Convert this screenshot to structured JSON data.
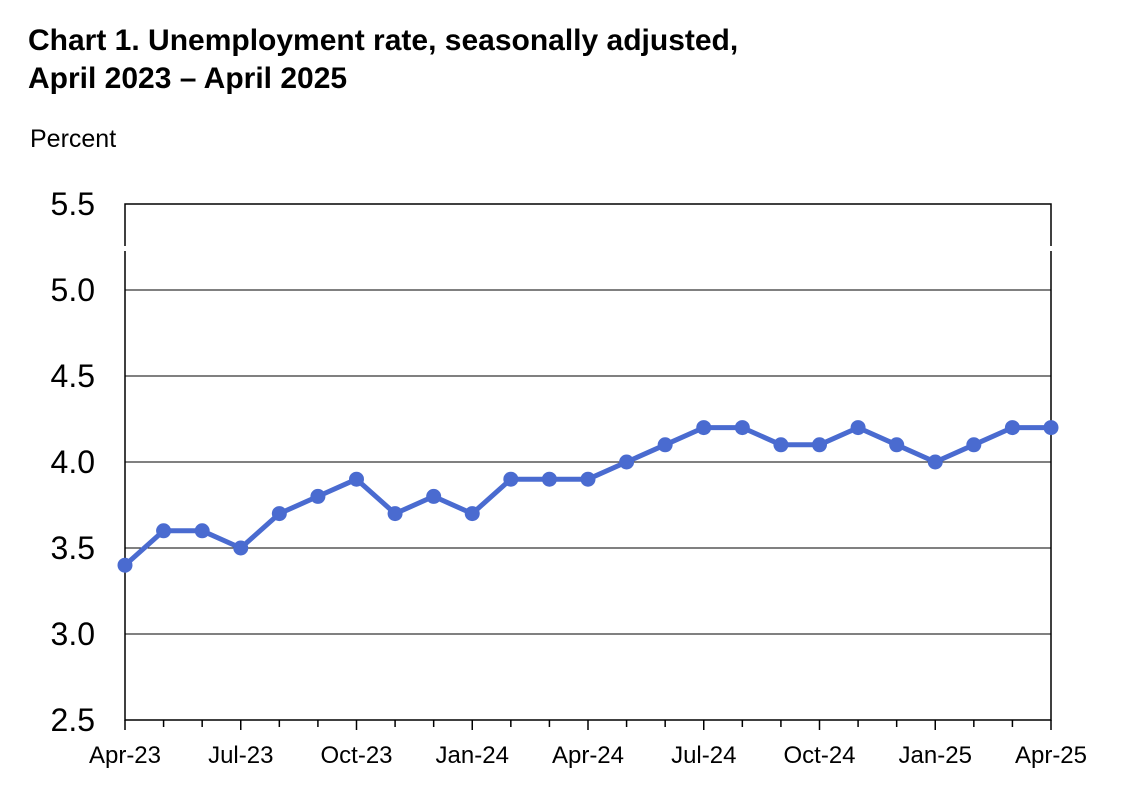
{
  "chart_data": {
    "type": "line",
    "title_line1": "Chart 1. Unemployment rate, seasonally adjusted,",
    "title_line2": "April 2023 – April 2025",
    "ylabel": "Percent",
    "xlabel": "",
    "ylim": [
      2.5,
      5.5
    ],
    "yticks": [
      "2.5",
      "3.0",
      "3.5",
      "4.0",
      "4.5",
      "5.0",
      "5.5"
    ],
    "ytick_values": [
      2.5,
      3.0,
      3.5,
      4.0,
      4.5,
      5.0,
      5.5
    ],
    "x": [
      "Apr-23",
      "May-23",
      "Jun-23",
      "Jul-23",
      "Aug-23",
      "Sep-23",
      "Oct-23",
      "Nov-23",
      "Dec-23",
      "Jan-24",
      "Feb-24",
      "Mar-24",
      "Apr-24",
      "May-24",
      "Jun-24",
      "Jul-24",
      "Aug-24",
      "Sep-24",
      "Oct-24",
      "Nov-24",
      "Dec-24",
      "Jan-25",
      "Feb-25",
      "Mar-25",
      "Apr-25"
    ],
    "xtick_labels": [
      "Apr-23",
      "Jul-23",
      "Oct-23",
      "Jan-24",
      "Apr-24",
      "Jul-24",
      "Oct-24",
      "Jan-25",
      "Apr-25"
    ],
    "series": [
      {
        "values": [
          3.4,
          3.6,
          3.6,
          3.5,
          3.7,
          3.8,
          3.9,
          3.7,
          3.8,
          3.7,
          3.9,
          3.9,
          3.9,
          4.0,
          4.1,
          4.2,
          4.2,
          4.1,
          4.1,
          4.2,
          4.1,
          4.0,
          4.1,
          4.2,
          4.2
        ]
      }
    ],
    "grid": true,
    "line_color": "#4a6bd0"
  }
}
